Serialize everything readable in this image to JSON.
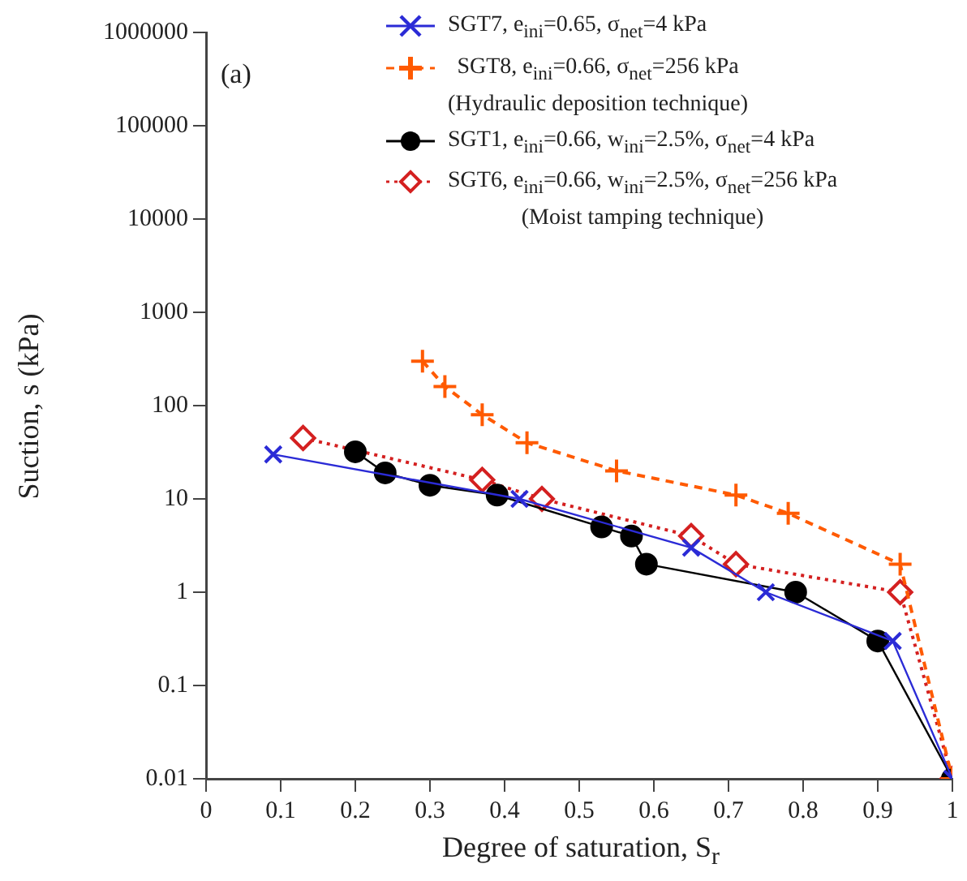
{
  "chart_data": {
    "type": "line",
    "xlabel": "Degree of saturation, S$_{r}$",
    "ylabel": "Suction, s (kPa)",
    "annotations": [
      "(a)"
    ],
    "xlim": [
      0,
      1
    ],
    "xticks": [
      0,
      0.1,
      0.2,
      0.3,
      0.4,
      0.5,
      0.6,
      0.7,
      0.8,
      0.9,
      1
    ],
    "ylim": [
      0.01,
      1000000
    ],
    "yticks": [
      0.01,
      0.1,
      1,
      10,
      100,
      1000,
      10000,
      100000,
      1000000
    ],
    "log": "y",
    "grid": false,
    "legend": "top right",
    "series": [
      {
        "name": "SGT7, e$_{ini}$=0.65, σ$_{net}$=4 kPa",
        "color": "#2b2bd6",
        "marker": "cross",
        "line_style": "solid",
        "x": [
          0.09,
          0.42,
          0.65,
          0.75,
          0.92,
          1
        ],
        "values": [
          30,
          10,
          3,
          1,
          0.3,
          0.01
        ]
      },
      {
        "name": "SGT8, e$_{ini}$=0.66, σ$_{net}$=256 kPa\n(Hydraulic deposition technique)",
        "color": "#ff5a00",
        "marker": "plus",
        "line_style": "dashed",
        "x": [
          0.29,
          0.32,
          0.37,
          0.43,
          0.55,
          0.71,
          0.78,
          0.93,
          1
        ],
        "values": [
          300,
          160,
          80,
          40,
          20,
          11,
          7,
          2,
          0.01
        ]
      },
      {
        "name": "SGT1, e$_{ini}$=0.66, w$_{ini}$=2.5%, σ$_{net}$=4 kPa",
        "color": "#000000",
        "marker": "circle",
        "line_style": "solid",
        "x": [
          0.2,
          0.24,
          0.3,
          0.39,
          0.53,
          0.57,
          0.59,
          0.79,
          0.9,
          1
        ],
        "values": [
          32,
          19,
          14,
          11,
          5,
          4,
          2,
          1,
          0.3,
          0.01
        ]
      },
      {
        "name": "SGT6, e$_{ini}$=0.66, w$_{ini}$=2.5%, σ$_{net}$=256 kPa\n(Moist tamping technique)",
        "color": "#d42020",
        "marker": "diamond",
        "line_style": "dotted",
        "x": [
          0.13,
          0.37,
          0.45,
          0.65,
          0.71,
          0.93,
          1
        ],
        "values": [
          45,
          16,
          10,
          4,
          2,
          1,
          0.01
        ]
      }
    ]
  }
}
